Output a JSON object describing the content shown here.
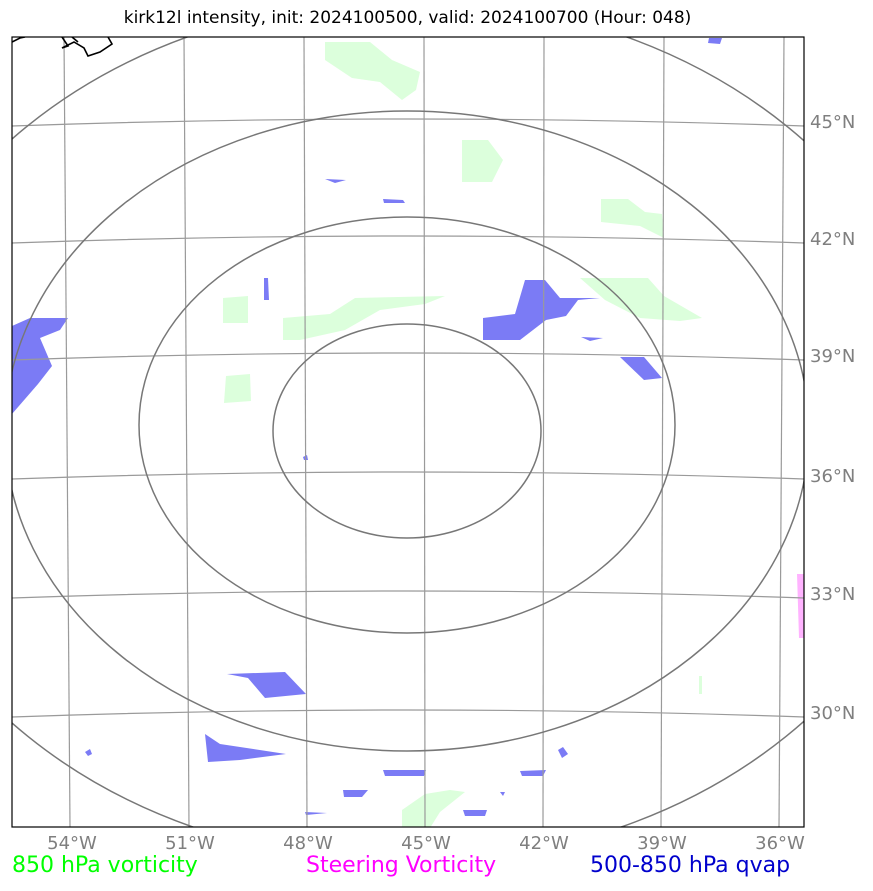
{
  "title": "kirk12l intensity, init: 2024100500, valid: 2024100700 (Hour: 048)",
  "lat_labels": [
    "45°N",
    "42°N",
    "39°N",
    "36°N",
    "33°N",
    "30°N"
  ],
  "lon_labels": [
    "54°W",
    "51°W",
    "48°W",
    "45°W",
    "42°W",
    "39°W",
    "36°W"
  ],
  "legend": {
    "vort850": {
      "label": "850 hPa vorticity",
      "color": "#00ff00"
    },
    "steering": {
      "label": "Steering Vorticity",
      "color": "#ff00ff"
    },
    "qvap": {
      "label": "500-850 hPa qvap",
      "color": "#0000cc"
    }
  },
  "colors": {
    "vort_fill": "#dcffdc",
    "qvap_fill": "#7b7bf5",
    "steering_fill": "#ffb3ff",
    "grid": "#9a9a9a",
    "rings": "#777777",
    "coast": "#000000"
  }
}
